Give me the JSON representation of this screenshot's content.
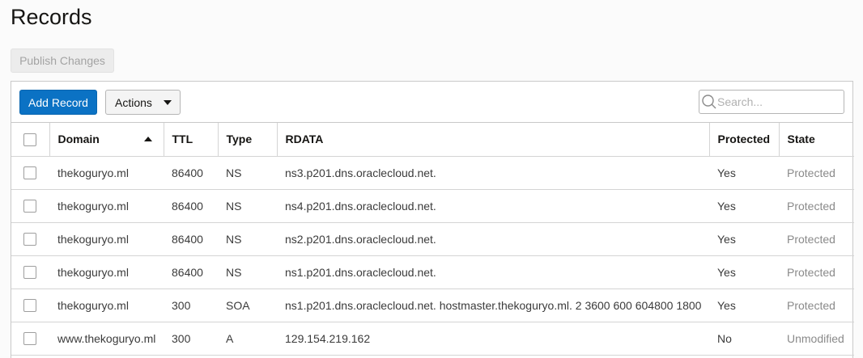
{
  "page": {
    "title": "Records"
  },
  "publish_button": {
    "label": "Publish Changes"
  },
  "toolbar": {
    "add_label": "Add Record",
    "actions_label": "Actions",
    "search_placeholder": "Search..."
  },
  "table": {
    "columns": [
      "Domain",
      "TTL",
      "Type",
      "RDATA",
      "Protected",
      "State"
    ],
    "rows": [
      {
        "domain": "thekoguryo.ml",
        "ttl": "86400",
        "type": "NS",
        "rdata": "ns3.p201.dns.oraclecloud.net.",
        "protected": "Yes",
        "state": "Protected"
      },
      {
        "domain": "thekoguryo.ml",
        "ttl": "86400",
        "type": "NS",
        "rdata": "ns4.p201.dns.oraclecloud.net.",
        "protected": "Yes",
        "state": "Protected"
      },
      {
        "domain": "thekoguryo.ml",
        "ttl": "86400",
        "type": "NS",
        "rdata": "ns2.p201.dns.oraclecloud.net.",
        "protected": "Yes",
        "state": "Protected"
      },
      {
        "domain": "thekoguryo.ml",
        "ttl": "86400",
        "type": "NS",
        "rdata": "ns1.p201.dns.oraclecloud.net.",
        "protected": "Yes",
        "state": "Protected"
      },
      {
        "domain": "thekoguryo.ml",
        "ttl": "300",
        "type": "SOA",
        "rdata": "ns1.p201.dns.oraclecloud.net. hostmaster.thekoguryo.ml. 2 3600 600 604800 1800",
        "protected": "Yes",
        "state": "Protected"
      },
      {
        "domain": "www.thekoguryo.ml",
        "ttl": "300",
        "type": "A",
        "rdata": "129.154.219.162",
        "protected": "No",
        "state": "Unmodified"
      }
    ]
  },
  "icons": {
    "search": "search-icon",
    "sort": "sort-ascending-icon",
    "dropdown": "chevron-down-icon"
  },
  "colors": {
    "primary": "#0b72c4",
    "disabled_text": "#a3a3a3"
  }
}
